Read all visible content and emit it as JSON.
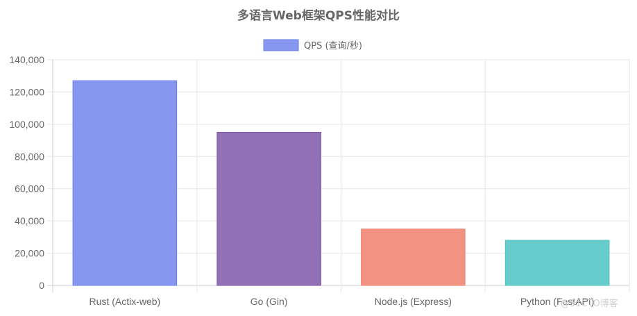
{
  "chart_data": {
    "type": "bar",
    "title": "多语言Web框架QPS性能对比",
    "categories": [
      "Rust (Actix-web)",
      "Go (Gin)",
      "Node.js (Express)",
      "Python (FastAPI)"
    ],
    "series": [
      {
        "name": "QPS (查询/秒)",
        "values": [
          127000,
          95000,
          35000,
          28000
        ],
        "colors": [
          "#8796EE",
          "#9270B5",
          "#F29282",
          "#67CCCB"
        ],
        "border_colors": [
          "#6D7FE6",
          "#7A58A3",
          "#EE8577",
          "#4DC1BF"
        ]
      }
    ],
    "ylim": [
      0,
      140000
    ],
    "yticks": [
      "0",
      "20,000",
      "40,000",
      "60,000",
      "80,000",
      "100,000",
      "120,000",
      "140,000"
    ],
    "ytick_values": [
      0,
      20000,
      40000,
      60000,
      80000,
      100000,
      120000,
      140000
    ],
    "legend_position": "top",
    "grid": true,
    "legend_color": "#8796EE"
  },
  "watermark": "@51CTO博客"
}
